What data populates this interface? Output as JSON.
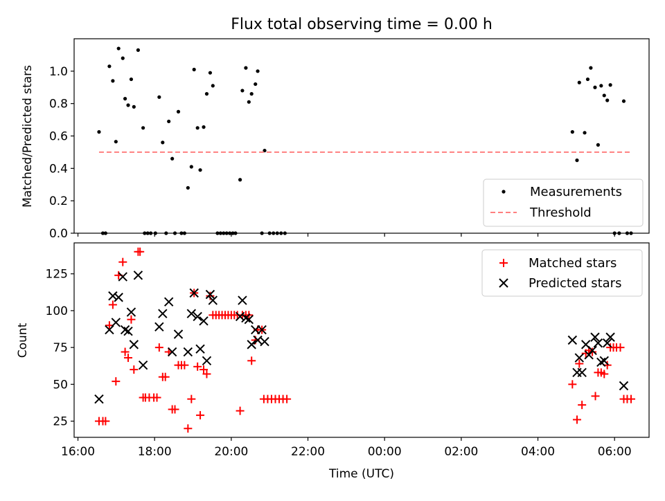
{
  "chart_data": [
    {
      "type": "scatter",
      "title": "Flux total observing time = 0.00 h",
      "xlabel": "",
      "ylabel": "Matched/Predicted stars",
      "xlim": [
        -0.1,
        14.9
      ],
      "ylim": [
        0.0,
        1.2
      ],
      "yticks": [
        0.0,
        0.2,
        0.4,
        0.6,
        0.8,
        1.0
      ],
      "ytick_labels": [
        "0.0",
        "0.2",
        "0.4",
        "0.6",
        "0.8",
        "1.0"
      ],
      "legend_position": "lower-right",
      "series": [
        {
          "name": "Measurements",
          "marker": "dot",
          "color": "#000000",
          "points": [
            [
              0.55,
              0.625
            ],
            [
              0.65,
              0.0
            ],
            [
              0.72,
              0.0
            ],
            [
              0.82,
              1.03
            ],
            [
              0.91,
              0.94
            ],
            [
              0.99,
              0.565
            ],
            [
              1.06,
              1.14
            ],
            [
              1.17,
              1.08
            ],
            [
              1.23,
              0.83
            ],
            [
              1.31,
              0.79
            ],
            [
              1.39,
              0.95
            ],
            [
              1.46,
              0.78
            ],
            [
              1.57,
              1.13
            ],
            [
              1.7,
              0.65
            ],
            [
              1.74,
              0.0
            ],
            [
              1.82,
              0.0
            ],
            [
              1.9,
              0.0
            ],
            [
              2.02,
              0.0
            ],
            [
              2.12,
              0.84
            ],
            [
              2.21,
              0.56
            ],
            [
              2.3,
              0.0
            ],
            [
              2.37,
              0.69
            ],
            [
              2.46,
              0.46
            ],
            [
              2.53,
              0.0
            ],
            [
              2.62,
              0.75
            ],
            [
              2.7,
              0.0
            ],
            [
              2.78,
              0.0
            ],
            [
              2.87,
              0.28
            ],
            [
              2.96,
              0.41
            ],
            [
              3.03,
              1.01
            ],
            [
              3.12,
              0.65
            ],
            [
              3.19,
              0.39
            ],
            [
              3.28,
              0.655
            ],
            [
              3.36,
              0.86
            ],
            [
              3.45,
              0.99
            ],
            [
              3.52,
              0.91
            ],
            [
              3.64,
              0.0
            ],
            [
              3.72,
              0.0
            ],
            [
              3.8,
              0.0
            ],
            [
              3.88,
              0.0
            ],
            [
              3.96,
              0.0
            ],
            [
              4.04,
              0.0
            ],
            [
              4.11,
              0.0
            ],
            [
              4.23,
              0.33
            ],
            [
              4.29,
              0.88
            ],
            [
              4.38,
              1.02
            ],
            [
              4.46,
              0.81
            ],
            [
              4.53,
              0.86
            ],
            [
              4.63,
              0.92
            ],
            [
              4.69,
              1.0
            ],
            [
              4.8,
              0.0
            ],
            [
              4.87,
              0.51
            ],
            [
              5.0,
              0.0
            ],
            [
              5.1,
              0.0
            ],
            [
              5.2,
              0.0
            ],
            [
              5.3,
              0.0
            ],
            [
              5.4,
              0.0
            ],
            [
              12.9,
              0.625
            ],
            [
              13.02,
              0.45
            ],
            [
              13.08,
              0.93
            ],
            [
              13.22,
              0.62
            ],
            [
              13.3,
              0.95
            ],
            [
              13.38,
              1.02
            ],
            [
              13.49,
              0.9
            ],
            [
              13.57,
              0.545
            ],
            [
              13.65,
              0.91
            ],
            [
              13.73,
              0.85
            ],
            [
              13.81,
              0.82
            ],
            [
              13.89,
              0.915
            ],
            [
              14.0,
              0.0
            ],
            [
              14.12,
              0.0
            ],
            [
              14.24,
              0.815
            ],
            [
              14.33,
              0.0
            ],
            [
              14.43,
              0.0
            ]
          ]
        },
        {
          "name": "Threshold",
          "style": "dashed",
          "color": "#ff7f7f",
          "x": [
            0.55,
            14.43
          ],
          "y": [
            0.5,
            0.5
          ]
        }
      ]
    },
    {
      "type": "scatter",
      "title": "",
      "xlabel": "Time (UTC)",
      "ylabel": "Count",
      "xlim": [
        -0.1,
        14.9
      ],
      "ylim": [
        14,
        146
      ],
      "xticks": [
        0,
        2,
        4,
        6,
        8,
        10,
        12,
        14
      ],
      "xtick_labels": [
        "16:00",
        "18:00",
        "20:00",
        "22:00",
        "00:00",
        "02:00",
        "04:00",
        "06:00"
      ],
      "yticks": [
        25,
        50,
        75,
        100,
        125
      ],
      "ytick_labels": [
        "25",
        "50",
        "75",
        "100",
        "125"
      ],
      "legend_position": "upper-right",
      "series": [
        {
          "name": "Matched stars",
          "marker": "plus",
          "color": "#ff0000",
          "points": [
            [
              0.55,
              25
            ],
            [
              0.65,
              25
            ],
            [
              0.72,
              25
            ],
            [
              0.82,
              90
            ],
            [
              0.91,
              104
            ],
            [
              0.99,
              52
            ],
            [
              1.06,
              124
            ],
            [
              1.17,
              133
            ],
            [
              1.23,
              72
            ],
            [
              1.31,
              68
            ],
            [
              1.39,
              94
            ],
            [
              1.46,
              60
            ],
            [
              1.57,
              140
            ],
            [
              1.62,
              140
            ],
            [
              1.7,
              41
            ],
            [
              1.76,
              41
            ],
            [
              1.86,
              41
            ],
            [
              1.98,
              41
            ],
            [
              2.06,
              41
            ],
            [
              2.12,
              75
            ],
            [
              2.21,
              55
            ],
            [
              2.28,
              55
            ],
            [
              2.37,
              72
            ],
            [
              2.46,
              33
            ],
            [
              2.53,
              33
            ],
            [
              2.62,
              63
            ],
            [
              2.7,
              63
            ],
            [
              2.78,
              63
            ],
            [
              2.87,
              20
            ],
            [
              2.96,
              40
            ],
            [
              3.03,
              112
            ],
            [
              3.12,
              62
            ],
            [
              3.19,
              29
            ],
            [
              3.28,
              60
            ],
            [
              3.36,
              57
            ],
            [
              3.45,
              110
            ],
            [
              3.52,
              97
            ],
            [
              3.6,
              97
            ],
            [
              3.68,
              97
            ],
            [
              3.76,
              97
            ],
            [
              3.84,
              97
            ],
            [
              3.92,
              97
            ],
            [
              4.0,
              97
            ],
            [
              4.08,
              97
            ],
            [
              4.16,
              97
            ],
            [
              4.23,
              32
            ],
            [
              4.29,
              97
            ],
            [
              4.38,
              97
            ],
            [
              4.46,
              97
            ],
            [
              4.53,
              66
            ],
            [
              4.63,
              80
            ],
            [
              4.69,
              87
            ],
            [
              4.8,
              87
            ],
            [
              4.85,
              40
            ],
            [
              4.95,
              40
            ],
            [
              5.05,
              40
            ],
            [
              5.15,
              40
            ],
            [
              5.25,
              40
            ],
            [
              5.35,
              40
            ],
            [
              5.45,
              40
            ],
            [
              12.9,
              50
            ],
            [
              13.02,
              26
            ],
            [
              13.08,
              64
            ],
            [
              13.15,
              36
            ],
            [
              13.25,
              71
            ],
            [
              13.33,
              73
            ],
            [
              13.42,
              72
            ],
            [
              13.5,
              42
            ],
            [
              13.57,
              58
            ],
            [
              13.65,
              58
            ],
            [
              13.73,
              57
            ],
            [
              13.81,
              63
            ],
            [
              13.89,
              75
            ],
            [
              13.97,
              75
            ],
            [
              14.05,
              75
            ],
            [
              14.15,
              75
            ],
            [
              14.24,
              40
            ],
            [
              14.33,
              40
            ],
            [
              14.43,
              40
            ]
          ]
        },
        {
          "name": "Predicted stars",
          "marker": "x",
          "color": "#000000",
          "points": [
            [
              0.55,
              40
            ],
            [
              0.82,
              87
            ],
            [
              0.91,
              110
            ],
            [
              0.99,
              92
            ],
            [
              1.06,
              109
            ],
            [
              1.17,
              123
            ],
            [
              1.23,
              87
            ],
            [
              1.31,
              86
            ],
            [
              1.39,
              99
            ],
            [
              1.46,
              77
            ],
            [
              1.57,
              124
            ],
            [
              1.7,
              63
            ],
            [
              2.12,
              89
            ],
            [
              2.21,
              98
            ],
            [
              2.37,
              106
            ],
            [
              2.46,
              72
            ],
            [
              2.62,
              84
            ],
            [
              2.87,
              72
            ],
            [
              2.96,
              98
            ],
            [
              3.03,
              112
            ],
            [
              3.12,
              96
            ],
            [
              3.19,
              74
            ],
            [
              3.28,
              93
            ],
            [
              3.36,
              66
            ],
            [
              3.45,
              111
            ],
            [
              3.52,
              107
            ],
            [
              4.23,
              96
            ],
            [
              4.29,
              107
            ],
            [
              4.38,
              95
            ],
            [
              4.46,
              94
            ],
            [
              4.53,
              77
            ],
            [
              4.63,
              87
            ],
            [
              4.69,
              80
            ],
            [
              4.8,
              87
            ],
            [
              4.87,
              79
            ],
            [
              12.9,
              80
            ],
            [
              13.02,
              58
            ],
            [
              13.08,
              68
            ],
            [
              13.15,
              58
            ],
            [
              13.25,
              77
            ],
            [
              13.33,
              70
            ],
            [
              13.42,
              73
            ],
            [
              13.49,
              82
            ],
            [
              13.57,
              78
            ],
            [
              13.65,
              65
            ],
            [
              13.73,
              66
            ],
            [
              13.81,
              78
            ],
            [
              13.89,
              82
            ],
            [
              14.24,
              49
            ]
          ]
        }
      ]
    }
  ]
}
